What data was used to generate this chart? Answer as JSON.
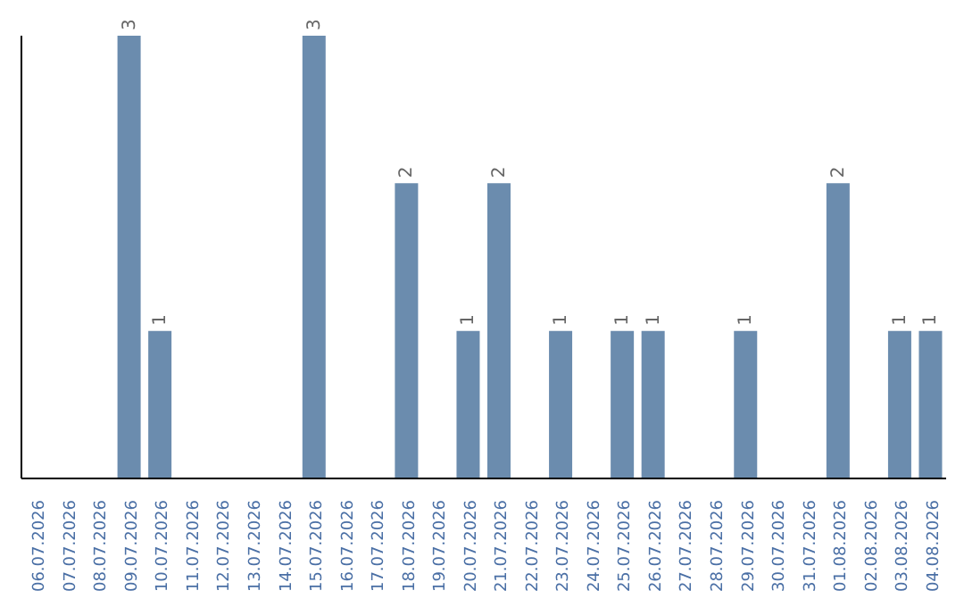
{
  "chart_data": {
    "type": "bar",
    "categories": [
      "06.07.2026",
      "07.07.2026",
      "08.07.2026",
      "09.07.2026",
      "10.07.2026",
      "11.07.2026",
      "12.07.2026",
      "13.07.2026",
      "14.07.2026",
      "15.07.2026",
      "16.07.2026",
      "17.07.2026",
      "18.07.2026",
      "19.07.2026",
      "20.07.2026",
      "21.07.2026",
      "22.07.2026",
      "23.07.2026",
      "24.07.2026",
      "25.07.2026",
      "26.07.2026",
      "27.07.2026",
      "28.07.2026",
      "29.07.2026",
      "30.07.2026",
      "31.07.2026",
      "01.08.2026",
      "02.08.2026",
      "03.08.2026",
      "04.08.2026"
    ],
    "values": [
      0,
      0,
      0,
      3,
      1,
      0,
      0,
      0,
      0,
      3,
      0,
      0,
      2,
      0,
      1,
      2,
      0,
      1,
      0,
      1,
      1,
      0,
      0,
      1,
      0,
      0,
      2,
      0,
      1,
      1
    ],
    "value_labels": [
      null,
      null,
      null,
      "3",
      "1",
      null,
      null,
      null,
      null,
      "3",
      null,
      null,
      "2",
      null,
      "1",
      "2",
      null,
      "1",
      null,
      "1",
      "1",
      null,
      null,
      "1",
      null,
      null,
      "2",
      null,
      "1",
      "1"
    ],
    "color": "#6b8cae",
    "relative": false,
    "grid": false,
    "legend": false
  }
}
